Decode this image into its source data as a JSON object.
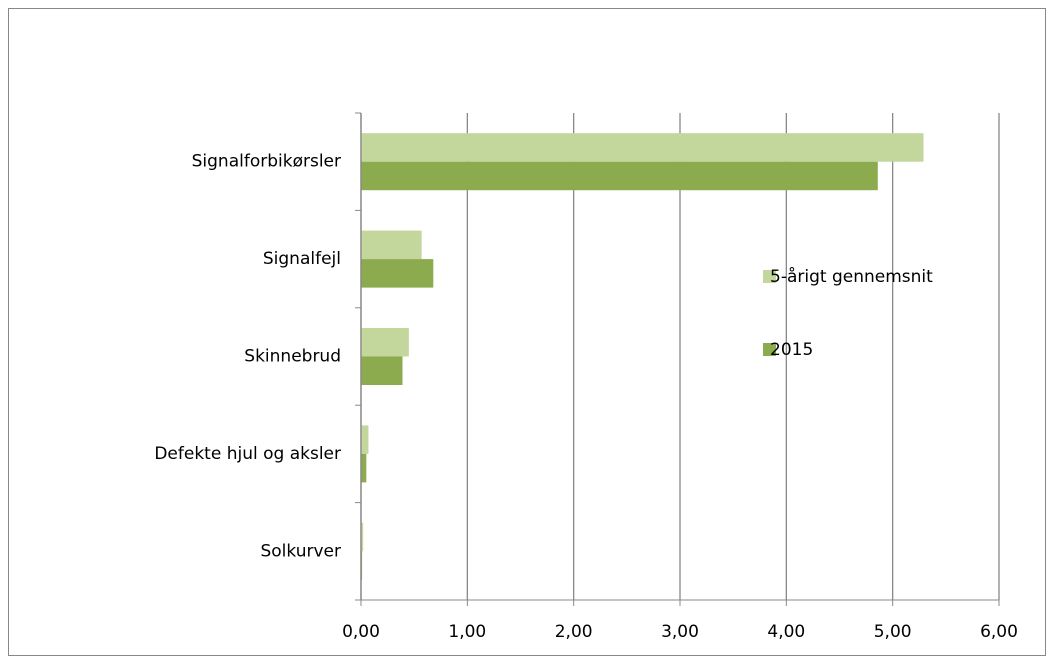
{
  "chart_data": {
    "type": "hbar",
    "categories": [
      "Signalforbikørsler",
      "Signalfejl",
      "Skinnebrud",
      "Defekte hjul og aksler",
      "Solkurver"
    ],
    "series": [
      {
        "name": "5-årigt gennemsnit",
        "color": "#c3d69b",
        "values": [
          5.29,
          0.57,
          0.45,
          0.07,
          0.02
        ]
      },
      {
        "name": "2015",
        "color": "#8cab4e",
        "values": [
          4.86,
          0.68,
          0.39,
          0.05,
          0.01
        ]
      }
    ],
    "xlim": [
      0,
      6
    ],
    "xticks": [
      {
        "value": 0,
        "label": "0,00"
      },
      {
        "value": 1,
        "label": "1,00"
      },
      {
        "value": 2,
        "label": "2,00"
      },
      {
        "value": 3,
        "label": "3,00"
      },
      {
        "value": 4,
        "label": "4,00"
      },
      {
        "value": 5,
        "label": "5,00"
      },
      {
        "value": 6,
        "label": "6,00"
      }
    ],
    "grid": true,
    "legend": "right"
  }
}
